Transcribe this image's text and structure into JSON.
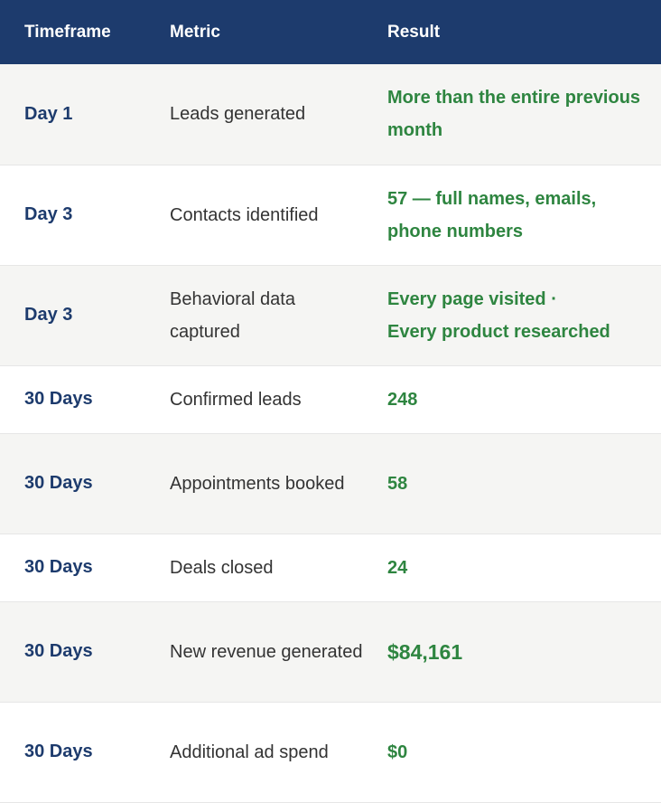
{
  "header": {
    "timeframe": "Timeframe",
    "metric": "Metric",
    "result": "Result"
  },
  "rows": [
    {
      "timeframe": "Day 1",
      "metric": "Leads generated",
      "result": "More than the entire previous month"
    },
    {
      "timeframe": "Day 3",
      "metric": "Contacts identified",
      "result": "57 — full names, emails, phone numbers"
    },
    {
      "timeframe": "Day 3",
      "metric": "Behavioral data captured",
      "result_line1": "Every page visited ·",
      "result_line2": "Every product researched"
    },
    {
      "timeframe": "30 Days",
      "metric": "Confirmed leads",
      "result": "248"
    },
    {
      "timeframe": "30 Days",
      "metric": "Appointments booked",
      "result": "58"
    },
    {
      "timeframe": "30 Days",
      "metric": "Deals closed",
      "result": "24"
    },
    {
      "timeframe": "30 Days",
      "metric": "New revenue generated",
      "result": "$84,161"
    },
    {
      "timeframe": "30 Days",
      "metric": "Additional ad spend",
      "result": "$0"
    }
  ],
  "colors": {
    "header_bg": "#1d3b6d",
    "timeframe_text": "#1d3b6d",
    "result_text": "#2e8540",
    "row_shade": "#f5f5f3"
  }
}
